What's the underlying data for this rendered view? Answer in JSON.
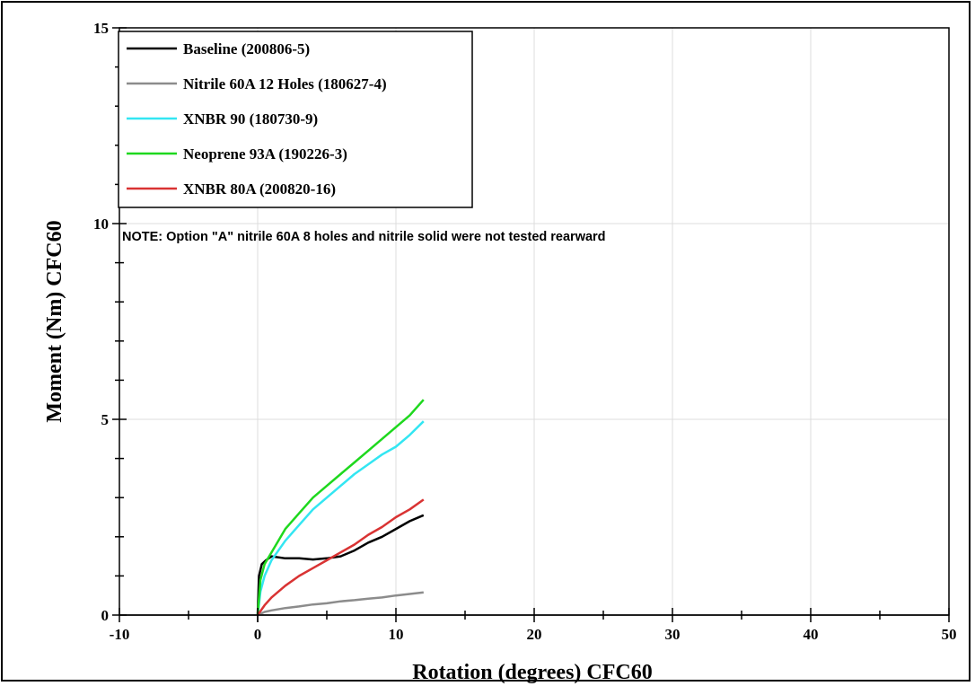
{
  "chart_data": {
    "type": "line",
    "title": "",
    "xlabel": "Rotation (degrees) CFC60",
    "ylabel": "Moment (Nm) CFC60",
    "xlim": [
      -10,
      50
    ],
    "ylim": [
      0,
      15
    ],
    "x_ticks": [
      "-10",
      "0",
      "10",
      "20",
      "30",
      "40",
      "50"
    ],
    "y_ticks": [
      "0",
      "5",
      "10",
      "15"
    ],
    "grid": true,
    "legend_position": "top-left",
    "note": "NOTE: Option \"A\" nitrile 60A 8 holes and nitrile solid were not tested rearward",
    "series": [
      {
        "name": "Baseline (200806-5)",
        "color": "#000000",
        "x": [
          0,
          0.1,
          0.3,
          0.6,
          1,
          2,
          3,
          4,
          5,
          6,
          7,
          8,
          9,
          10,
          11,
          12
        ],
        "y": [
          0,
          1.0,
          1.3,
          1.4,
          1.5,
          1.45,
          1.45,
          1.42,
          1.45,
          1.5,
          1.65,
          1.85,
          2.0,
          2.2,
          2.4,
          2.55
        ]
      },
      {
        "name": "Nitrile 60A 12 Holes (180627-4)",
        "color": "#8c8c8c",
        "x": [
          0,
          0.5,
          1,
          2,
          3,
          4,
          5,
          6,
          7,
          8,
          9,
          10,
          11,
          12
        ],
        "y": [
          0,
          0.08,
          0.12,
          0.18,
          0.22,
          0.27,
          0.3,
          0.35,
          0.38,
          0.42,
          0.45,
          0.5,
          0.54,
          0.58
        ]
      },
      {
        "name": "XNBR 90 (180730-9)",
        "color": "#33e6f2",
        "x": [
          0,
          0.2,
          0.5,
          1,
          2,
          3,
          4,
          5,
          6,
          7,
          8,
          9,
          10,
          11,
          12
        ],
        "y": [
          0,
          0.6,
          1.0,
          1.4,
          1.9,
          2.3,
          2.7,
          3.0,
          3.3,
          3.6,
          3.85,
          4.1,
          4.3,
          4.6,
          4.95
        ]
      },
      {
        "name": "Neoprene 93A (190226-3)",
        "color": "#1ed81e",
        "x": [
          0,
          0.2,
          0.5,
          1,
          2,
          3,
          4,
          5,
          6,
          7,
          8,
          9,
          10,
          11,
          12
        ],
        "y": [
          0,
          0.9,
          1.3,
          1.6,
          2.2,
          2.6,
          3.0,
          3.3,
          3.6,
          3.9,
          4.2,
          4.5,
          4.8,
          5.1,
          5.5
        ]
      },
      {
        "name": "XNBR 80A (200820-16)",
        "color": "#d93333",
        "x": [
          0,
          0.5,
          1,
          2,
          3,
          4,
          5,
          6,
          7,
          8,
          9,
          10,
          11,
          12
        ],
        "y": [
          0,
          0.25,
          0.45,
          0.75,
          1.0,
          1.2,
          1.4,
          1.6,
          1.8,
          2.05,
          2.25,
          2.5,
          2.7,
          2.95
        ]
      }
    ]
  }
}
